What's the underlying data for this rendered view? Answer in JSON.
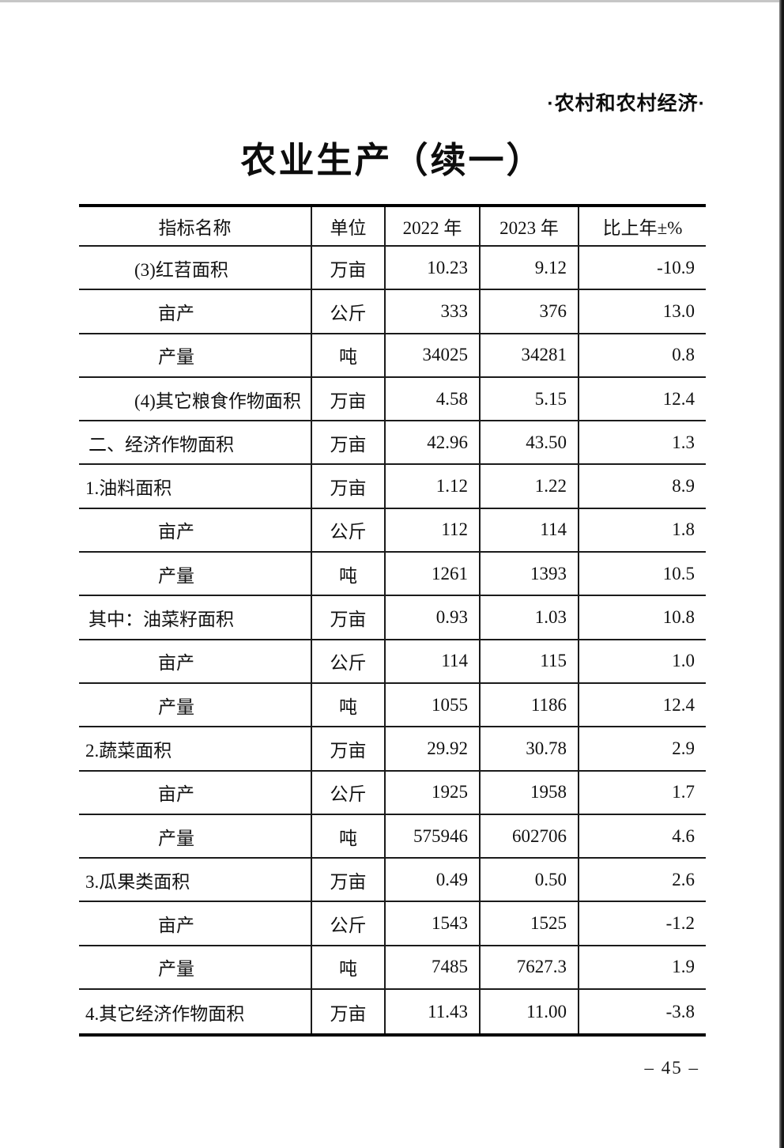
{
  "page": {
    "section_header": "·农村和农村经济·",
    "title": "农业生产（续一）",
    "page_number": "– 45 –"
  },
  "table": {
    "columns": [
      "指标名称",
      "单位",
      "2022 年",
      "2023 年",
      "比上年±%"
    ],
    "rows": [
      {
        "name": "(3)红苕面积",
        "indent": 2,
        "unit": "万亩",
        "y2022": "10.23",
        "y2023": "9.12",
        "change": "-10.9"
      },
      {
        "name": "亩产",
        "indent": 3,
        "unit": "公斤",
        "y2022": "333",
        "y2023": "376",
        "change": "13.0"
      },
      {
        "name": "产量",
        "indent": 3,
        "unit": "吨",
        "y2022": "34025",
        "y2023": "34281",
        "change": "0.8"
      },
      {
        "name": "(4)其它粮食作物面积",
        "indent": 2,
        "unit": "万亩",
        "y2022": "4.58",
        "y2023": "5.15",
        "change": "12.4"
      },
      {
        "name": "二、经济作物面积",
        "indent": 0,
        "unit": "万亩",
        "y2022": "42.96",
        "y2023": "43.50",
        "change": "1.3"
      },
      {
        "name": "1.油料面积",
        "indent": 1,
        "unit": "万亩",
        "y2022": "1.12",
        "y2023": "1.22",
        "change": "8.9"
      },
      {
        "name": "亩产",
        "indent": 3,
        "unit": "公斤",
        "y2022": "112",
        "y2023": "114",
        "change": "1.8"
      },
      {
        "name": "产量",
        "indent": 3,
        "unit": "吨",
        "y2022": "1261",
        "y2023": "1393",
        "change": "10.5"
      },
      {
        "name": "其中：油菜籽面积",
        "indent": 0,
        "unit": "万亩",
        "y2022": "0.93",
        "y2023": "1.03",
        "change": "10.8"
      },
      {
        "name": "亩产",
        "indent": 3,
        "unit": "公斤",
        "y2022": "114",
        "y2023": "115",
        "change": "1.0"
      },
      {
        "name": "产量",
        "indent": 3,
        "unit": "吨",
        "y2022": "1055",
        "y2023": "1186",
        "change": "12.4"
      },
      {
        "name": "2.蔬菜面积",
        "indent": 1,
        "unit": "万亩",
        "y2022": "29.92",
        "y2023": "30.78",
        "change": "2.9"
      },
      {
        "name": "亩产",
        "indent": 3,
        "unit": "公斤",
        "y2022": "1925",
        "y2023": "1958",
        "change": "1.7"
      },
      {
        "name": "产量",
        "indent": 3,
        "unit": "吨",
        "y2022": "575946",
        "y2023": "602706",
        "change": "4.6"
      },
      {
        "name": "3.瓜果类面积",
        "indent": 1,
        "unit": "万亩",
        "y2022": "0.49",
        "y2023": "0.50",
        "change": "2.6"
      },
      {
        "name": "亩产",
        "indent": 3,
        "unit": "公斤",
        "y2022": "1543",
        "y2023": "1525",
        "change": "-1.2"
      },
      {
        "name": "产量",
        "indent": 3,
        "unit": "吨",
        "y2022": "7485",
        "y2023": "7627.3",
        "change": "1.9"
      },
      {
        "name": "4.其它经济作物面积",
        "indent": 1,
        "unit": "万亩",
        "y2022": "11.43",
        "y2023": "11.00",
        "change": "-3.8"
      }
    ]
  }
}
